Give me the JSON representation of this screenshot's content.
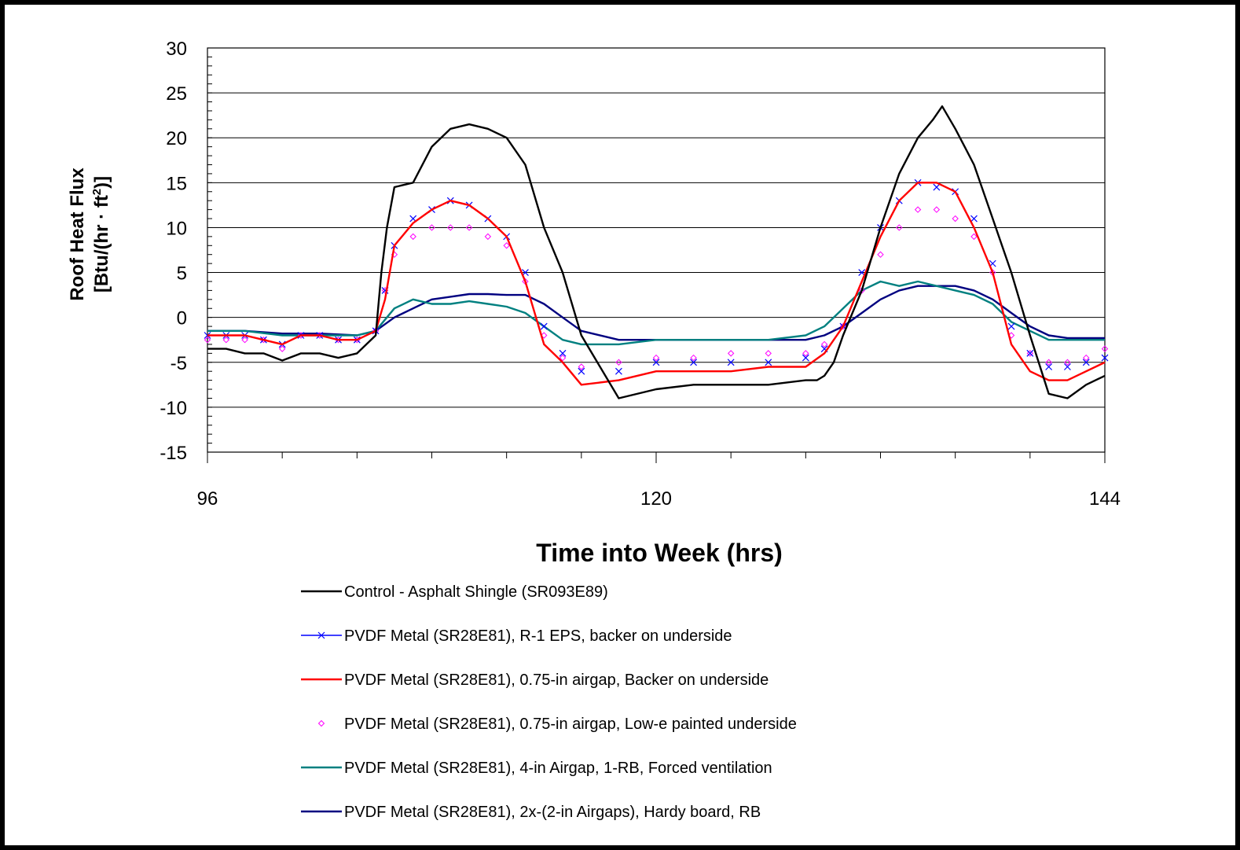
{
  "chart_data": {
    "type": "line",
    "title": "",
    "xlabel": "Time into Week (hrs)",
    "ylabel_line1": "Roof Heat Flux",
    "ylabel_line2_pre": "[Btu/(hr · ft",
    "ylabel_sup": "2",
    "ylabel_line2_post": ")]",
    "xlim": [
      96,
      144
    ],
    "ylim": [
      -15,
      30
    ],
    "x_ticks": [
      96,
      120,
      144
    ],
    "y_ticks": [
      -15,
      -10,
      -5,
      0,
      5,
      10,
      15,
      20,
      25,
      30
    ],
    "grid": "horizontal",
    "legend_position": "bottom",
    "series": [
      {
        "name": "Control - Asphalt Shingle (SR093E89)",
        "color": "#000000",
        "style": "line",
        "marker": "none",
        "x": [
          96,
          97,
          98,
          99,
          100,
          101,
          102,
          103,
          104,
          105,
          105.3,
          105.6,
          106,
          107,
          108,
          109,
          110,
          111,
          112,
          113,
          114,
          115,
          116,
          118,
          120,
          122,
          124,
          126,
          128,
          128.6,
          129,
          129.5,
          130,
          131,
          132,
          133,
          134,
          134.8,
          135.3,
          136,
          136.5,
          137,
          138,
          139,
          140,
          141,
          142,
          143,
          144
        ],
        "y": [
          -3.5,
          -3.5,
          -4,
          -4,
          -4.8,
          -4,
          -4,
          -4.5,
          -4,
          -2,
          5,
          10,
          14.5,
          15,
          19,
          21,
          21.5,
          21,
          20,
          17,
          10,
          5,
          -2,
          -9,
          -8,
          -7.5,
          -7.5,
          -7.5,
          -7,
          -7,
          -6.5,
          -5,
          -2,
          3,
          10,
          16,
          20,
          22,
          23.5,
          21,
          19,
          17,
          11,
          5,
          -2,
          -8.5,
          -9,
          -7.5,
          -6.5
        ]
      },
      {
        "name": "PVDF Metal (SR28E81), R-1 EPS, backer on underside",
        "color": "#0000ff",
        "style": "markers",
        "marker": "x",
        "x": [
          96,
          97,
          98,
          99,
          100,
          101,
          102,
          103,
          104,
          105,
          105.5,
          106,
          107,
          108,
          109,
          110,
          111,
          112,
          113,
          114,
          115,
          116,
          118,
          120,
          122,
          124,
          126,
          128,
          129,
          130,
          131,
          132,
          133,
          134,
          135,
          136,
          137,
          138,
          139,
          140,
          141,
          142,
          143,
          144
        ],
        "y": [
          -2,
          -2,
          -2,
          -2.5,
          -3,
          -2,
          -2,
          -2.5,
          -2.5,
          -1.5,
          3,
          8,
          11,
          12,
          13,
          12.5,
          11,
          9,
          5,
          -1,
          -4,
          -6,
          -6,
          -5,
          -5,
          -5,
          -5,
          -4.5,
          -3.5,
          -1,
          5,
          10,
          13,
          15,
          14.5,
          14,
          11,
          6,
          -1,
          -4,
          -5.5,
          -5.5,
          -5,
          -4.5
        ]
      },
      {
        "name": "PVDF Metal (SR28E81), 0.75-in airgap, Backer on underside",
        "color": "#ff0000",
        "style": "line",
        "marker": "none",
        "x": [
          96,
          97,
          98,
          99,
          100,
          101,
          102,
          103,
          104,
          105,
          105.5,
          106,
          107,
          108,
          109,
          110,
          111,
          112,
          113,
          114,
          115,
          116,
          118,
          120,
          122,
          124,
          126,
          128,
          129,
          130,
          131,
          132,
          133,
          134,
          135,
          136,
          137,
          138,
          139,
          140,
          141,
          142,
          143,
          144
        ],
        "y": [
          -2,
          -2,
          -2,
          -2.5,
          -3,
          -2,
          -2,
          -2.5,
          -2.5,
          -1.5,
          2,
          8,
          10.5,
          12,
          13,
          12.5,
          11,
          9,
          4,
          -3,
          -5,
          -7.5,
          -7,
          -6,
          -6,
          -6,
          -5.5,
          -5.5,
          -4,
          -1,
          4,
          9,
          13,
          15,
          15,
          14,
          10,
          5,
          -3,
          -6,
          -7,
          -7,
          -6,
          -5
        ]
      },
      {
        "name": "PVDF Metal (SR28E81), 0.75-in airgap, Low-e painted underside",
        "color": "#ff00ff",
        "style": "markers",
        "marker": "diamond",
        "x": [
          96,
          97,
          98,
          99,
          100,
          101,
          102,
          103,
          104,
          105,
          105.5,
          106,
          107,
          108,
          109,
          110,
          111,
          112,
          113,
          114,
          115,
          116,
          118,
          120,
          122,
          124,
          126,
          128,
          129,
          130,
          131,
          132,
          133,
          134,
          135,
          136,
          137,
          138,
          139,
          140,
          141,
          142,
          143,
          144
        ],
        "y": [
          -2.5,
          -2.5,
          -2.5,
          -2.5,
          -3.5,
          -2,
          -2,
          -2.5,
          -2.5,
          -1.5,
          3,
          7,
          9,
          10,
          10,
          10,
          9,
          8,
          4,
          -2,
          -4.5,
          -5.5,
          -5,
          -4.5,
          -4.5,
          -4,
          -4,
          -4,
          -3,
          -1,
          3,
          7,
          10,
          12,
          12,
          11,
          9,
          5,
          -2,
          -4,
          -5,
          -5,
          -4.5,
          -3.5
        ]
      },
      {
        "name": "PVDF Metal (SR28E81), 4-in Airgap, 1-RB, Forced ventilation",
        "color": "#008080",
        "style": "line",
        "marker": "none",
        "x": [
          96,
          98,
          100,
          102,
          104,
          105,
          106,
          107,
          108,
          109,
          110,
          111,
          112,
          113,
          114,
          115,
          116,
          118,
          120,
          122,
          124,
          126,
          128,
          129,
          130,
          131,
          132,
          133,
          134,
          135,
          136,
          137,
          138,
          139,
          140,
          141,
          142,
          144
        ],
        "y": [
          -1.5,
          -1.5,
          -2,
          -2,
          -2,
          -1.5,
          1,
          2,
          1.5,
          1.5,
          1.8,
          1.5,
          1.2,
          0.5,
          -1,
          -2.5,
          -3,
          -3,
          -2.5,
          -2.5,
          -2.5,
          -2.5,
          -2,
          -1,
          1,
          3,
          4,
          3.5,
          4,
          3.5,
          3,
          2.5,
          1.5,
          -0.5,
          -1.5,
          -2.5,
          -2.5,
          -2.5
        ]
      },
      {
        "name": "PVDF Metal (SR28E81), 2x-(2-in Airgaps), Hardy board, RB",
        "color": "#000080",
        "style": "line",
        "marker": "none",
        "x": [
          96,
          98,
          100,
          102,
          104,
          105,
          106,
          107,
          108,
          109,
          110,
          111,
          112,
          113,
          114,
          115,
          116,
          118,
          120,
          122,
          124,
          126,
          128,
          129,
          130,
          131,
          132,
          133,
          134,
          135,
          136,
          137,
          138,
          139,
          140,
          141,
          142,
          144
        ],
        "y": [
          -1.5,
          -1.5,
          -1.8,
          -1.8,
          -2,
          -1.5,
          0,
          1,
          2,
          2.3,
          2.6,
          2.6,
          2.5,
          2.5,
          1.5,
          0,
          -1.5,
          -2.5,
          -2.5,
          -2.5,
          -2.5,
          -2.5,
          -2.5,
          -2,
          -1,
          0.5,
          2,
          3,
          3.5,
          3.5,
          3.5,
          3,
          2,
          0.5,
          -1,
          -2,
          -2.3,
          -2.3
        ]
      }
    ]
  }
}
